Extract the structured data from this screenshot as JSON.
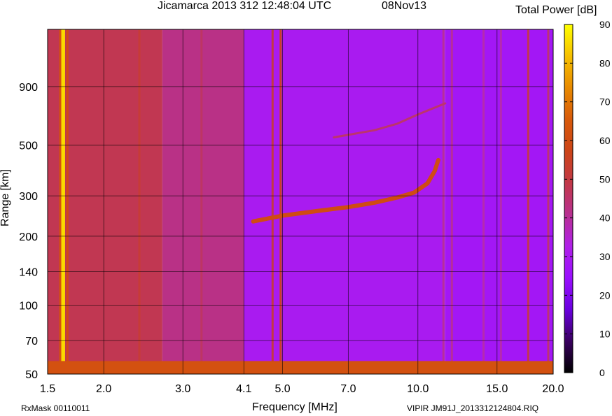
{
  "header": {
    "title": "Jicamarca 2013 312 12:48:04 UTC",
    "date": "08Nov13"
  },
  "footer": {
    "left": "RxMask 00110011",
    "right": "VIPIR  JM91J_2013312124804.RIQ"
  },
  "colorbar": {
    "title": "Total Power [dB]",
    "range": [
      0,
      90
    ],
    "ticks": [
      "0",
      "10",
      "20",
      "30",
      "40",
      "50",
      "60",
      "70",
      "80",
      "90"
    ],
    "colormap": [
      "#000000",
      "#3a0060",
      "#6a00e0",
      "#9a10ff",
      "#b020e8",
      "#b83090",
      "#c23848",
      "#cc4418",
      "#d85a0a",
      "#e88a00",
      "#f6c000",
      "#ffff00"
    ]
  },
  "chart_data": {
    "type": "heatmap",
    "title": "Jicamarca 2013 312 12:48:04 UTC",
    "xlabel": "Frequency [MHz]",
    "ylabel": "Range [km]",
    "x_scale": "log",
    "y_scale": "log",
    "xlim": [
      1.5,
      20.0
    ],
    "ylim": [
      50,
      1600
    ],
    "x_ticks": [
      1.5,
      2.0,
      3.0,
      4.1,
      5.0,
      7.0,
      10.0,
      15.0,
      20.0
    ],
    "x_tick_labels": [
      "1.5",
      "2.0",
      "3.0",
      "4.1",
      "5.0",
      "7.0",
      "10.0",
      "15.0",
      "20.0"
    ],
    "y_ticks": [
      50,
      70,
      100,
      140,
      200,
      300,
      500,
      900
    ],
    "y_tick_labels": [
      "50",
      "70",
      "100",
      "140",
      "200",
      "300",
      "500",
      "900"
    ],
    "grid": true,
    "value_label": "Total Power [dB]",
    "background": [
      {
        "f_start": 1.5,
        "f_end": 2.7,
        "power_db": 48
      },
      {
        "f_start": 2.7,
        "f_end": 4.1,
        "power_db": 42
      },
      {
        "f_start": 4.1,
        "f_end": 11.5,
        "power_db": 30
      },
      {
        "f_start": 11.5,
        "f_end": 20.0,
        "power_db": 28
      }
    ],
    "interference_lines": [
      {
        "freq": 1.62,
        "power_db": 85
      },
      {
        "freq": 1.6,
        "power_db": 62
      },
      {
        "freq": 1.66,
        "power_db": 60
      },
      {
        "freq": 2.4,
        "power_db": 52
      },
      {
        "freq": 3.3,
        "power_db": 46
      },
      {
        "freq": 4.75,
        "power_db": 50
      },
      {
        "freq": 4.95,
        "power_db": 55
      },
      {
        "freq": 11.4,
        "power_db": 40
      },
      {
        "freq": 11.9,
        "power_db": 40
      },
      {
        "freq": 14.0,
        "power_db": 38
      },
      {
        "freq": 15.3,
        "power_db": 38
      },
      {
        "freq": 17.6,
        "power_db": 48
      },
      {
        "freq": 19.5,
        "power_db": 44
      }
    ],
    "ground_echo": {
      "range_max_km": 57,
      "power_db": 62
    },
    "traces": [
      {
        "name": "F-layer echo",
        "points": [
          [
            4.3,
            232
          ],
          [
            5.0,
            246
          ],
          [
            6.0,
            258
          ],
          [
            7.0,
            268
          ],
          [
            8.0,
            280
          ],
          [
            9.0,
            295
          ],
          [
            9.8,
            310
          ],
          [
            10.5,
            340
          ],
          [
            10.9,
            385
          ],
          [
            11.1,
            430
          ]
        ],
        "power_db": 60
      },
      {
        "name": "Multiple echo",
        "points": [
          [
            6.5,
            540
          ],
          [
            8.0,
            580
          ],
          [
            9.0,
            620
          ],
          [
            10.0,
            680
          ],
          [
            11.5,
            760
          ]
        ],
        "power_db": 45
      }
    ]
  }
}
